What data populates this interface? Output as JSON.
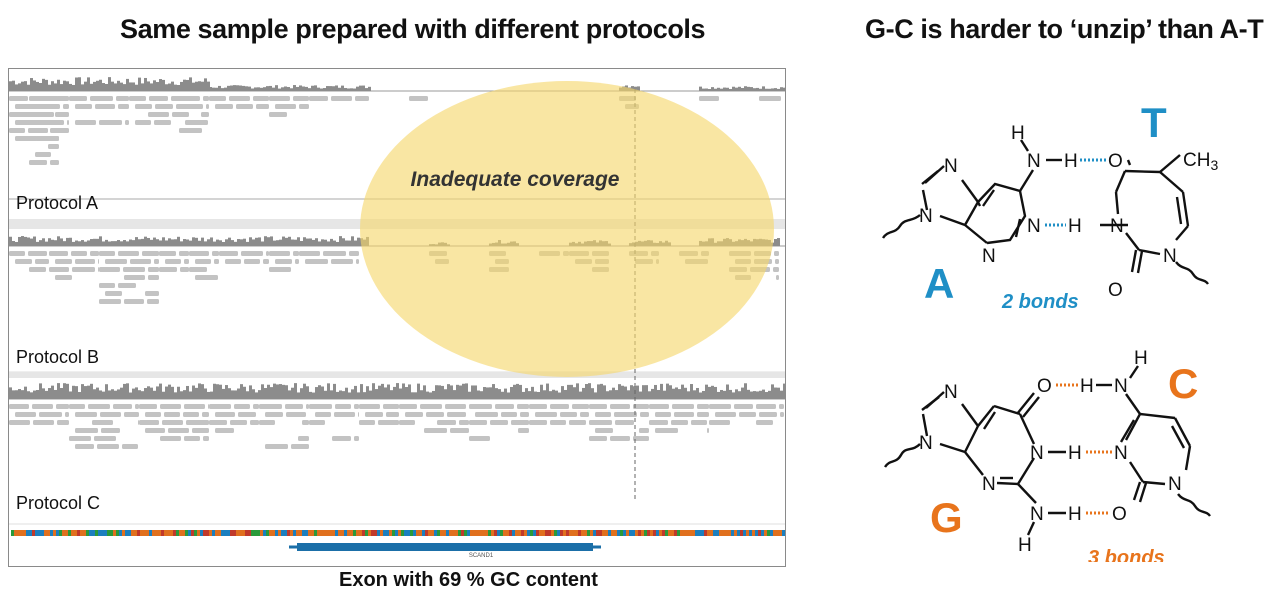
{
  "left_title": "Same sample prepared with different protocols",
  "right_title": "G-C is harder to ‘unzip’ than A-T",
  "annotation": "Inadequate coverage",
  "tracks": [
    {
      "label": "Protocol A"
    },
    {
      "label": "Protocol B"
    },
    {
      "label": "Protocol C"
    }
  ],
  "gene_label": "SCAND1",
  "caption": "Exon with 69 % GC content",
  "colors": {
    "highlight": "#f5d66b",
    "read": "#c3c3c3",
    "coverage": "#8c8c8c",
    "at_bond": "#1f8fc6",
    "gc_bond": "#e8741c",
    "gene": "#1b6fa8"
  },
  "at_pair": {
    "base1": "A",
    "base2": "T",
    "bond_count_label": "2 bonds",
    "atoms": {
      "h": "H",
      "n": "N",
      "o": "O",
      "ch3": "CH",
      "ch3_sub": "3"
    }
  },
  "gc_pair": {
    "base1": "G",
    "base2": "C",
    "bond_count_label": "3 bonds",
    "atoms": {
      "h": "H",
      "n": "N",
      "o": "O"
    }
  }
}
